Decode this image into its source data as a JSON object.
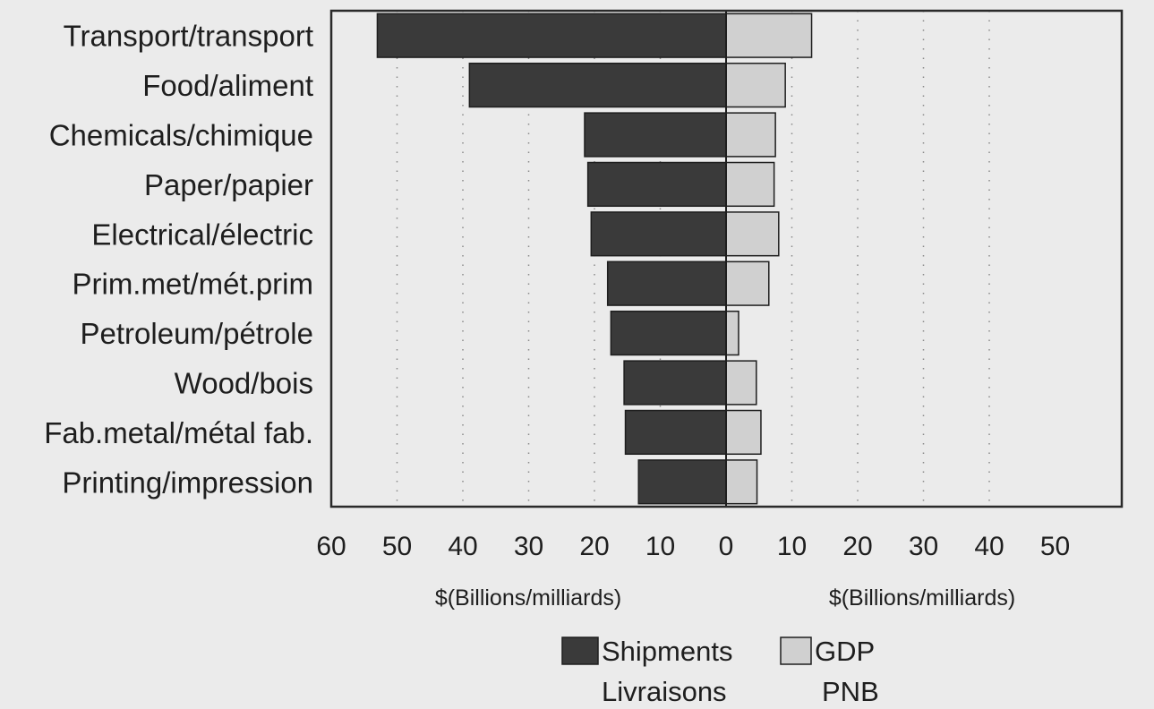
{
  "chart_data": {
    "type": "bar",
    "orientation": "horizontal",
    "layout": "back-to-back",
    "categories": [
      "Transport/transport",
      "Food/aliment",
      "Chemicals/chimique",
      "Paper/papier",
      "Electrical/électric",
      "Prim.met/mét.prim",
      "Petroleum/pétrole",
      "Wood/bois",
      "Fab.metal/métal fab.",
      "Printing/impression"
    ],
    "series": [
      {
        "name": "Shipments",
        "name_fr": "Livraisons",
        "side": "left",
        "color": "#3a3a3a",
        "values": [
          53,
          39,
          21.5,
          21,
          20.5,
          18,
          17.5,
          15.5,
          15.3,
          13.3
        ]
      },
      {
        "name": "GDP",
        "name_fr": "PNB",
        "side": "right",
        "color": "#d0d0d0",
        "values": [
          13,
          9,
          7.5,
          7.3,
          8,
          6.5,
          1.9,
          4.6,
          5.3,
          4.7
        ]
      }
    ],
    "left_axis": {
      "label": "$(Billions/milliards)",
      "range": [
        60,
        0
      ],
      "ticks": [
        "60",
        "50",
        "40",
        "30",
        "20",
        "10",
        "0"
      ]
    },
    "right_axis": {
      "label": "$(Billions/milliards)",
      "range": [
        0,
        50
      ],
      "ticks": [
        "10",
        "20",
        "30",
        "40",
        "50"
      ]
    },
    "grid": "vertical dotted",
    "legend_position": "bottom"
  }
}
